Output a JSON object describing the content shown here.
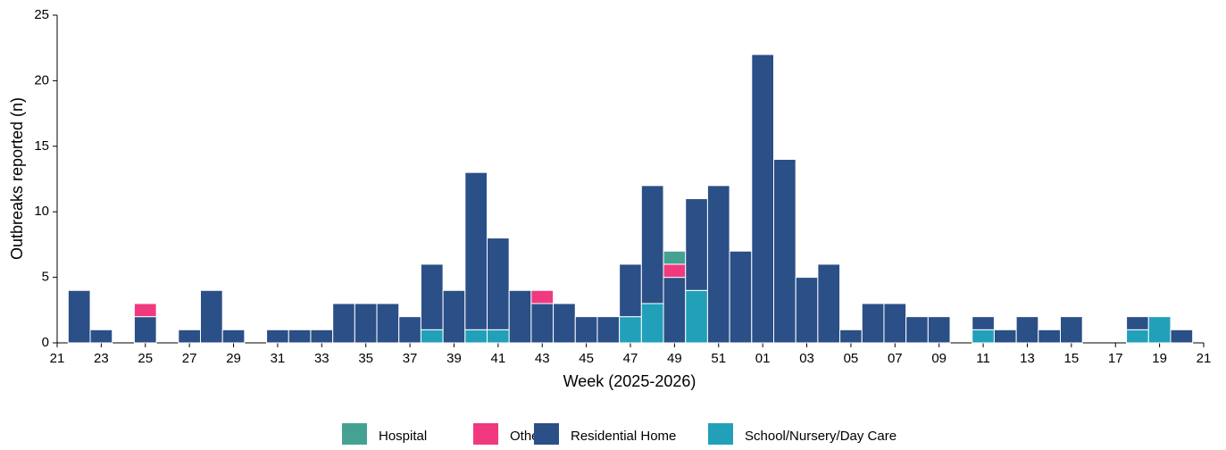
{
  "chart_data": {
    "type": "stacked_bar",
    "xlabel": "Week (2025-2026)",
    "ylabel": "Outbreaks reported (n)",
    "categories": [
      "21",
      null,
      "23",
      null,
      "25",
      null,
      "27",
      null,
      "29",
      null,
      "31",
      null,
      "33",
      null,
      "35",
      null,
      "37",
      null,
      "39",
      null,
      "41",
      null,
      "43",
      null,
      "45",
      null,
      "47",
      null,
      "49",
      null,
      "51",
      null,
      "01",
      null,
      "03",
      null,
      "05",
      null,
      "07",
      null,
      "09",
      null,
      "11",
      null,
      "13",
      null,
      "15",
      null,
      "17",
      null,
      "19",
      null,
      "21"
    ],
    "series": [
      {
        "name": "Hospital",
        "color": "#45a292",
        "values": [
          0,
          0,
          0,
          0,
          0,
          0,
          0,
          0,
          0,
          0,
          0,
          0,
          0,
          0,
          0,
          0,
          0,
          0,
          0,
          0,
          0,
          0,
          0,
          0,
          0,
          0,
          0,
          0,
          1,
          0,
          0,
          0,
          0,
          0,
          0,
          0,
          0,
          0,
          0,
          0,
          0,
          0,
          0,
          0,
          0,
          0,
          0,
          0,
          0,
          0,
          0,
          0,
          0
        ]
      },
      {
        "name": "Other",
        "color": "#f0397f",
        "values": [
          0,
          0,
          0,
          0,
          1,
          0,
          0,
          0,
          0,
          0,
          0,
          0,
          0,
          0,
          0,
          0,
          0,
          0,
          0,
          0,
          0,
          0,
          1,
          0,
          0,
          0,
          0,
          0,
          1,
          0,
          0,
          0,
          0,
          0,
          0,
          0,
          0,
          0,
          0,
          0,
          0,
          0,
          0,
          0,
          0,
          0,
          0,
          0,
          0,
          0,
          0,
          0,
          0
        ]
      },
      {
        "name": "Residential Home",
        "color": "#2b4f87",
        "values": [
          0,
          4,
          1,
          0,
          2,
          0,
          1,
          4,
          1,
          0,
          1,
          1,
          1,
          3,
          3,
          3,
          2,
          5,
          4,
          12,
          7,
          4,
          3,
          3,
          2,
          2,
          4,
          9,
          5,
          7,
          12,
          7,
          22,
          14,
          5,
          6,
          1,
          3,
          3,
          2,
          2,
          0,
          1,
          1,
          2,
          1,
          2,
          0,
          0,
          1,
          0,
          1,
          0
        ]
      },
      {
        "name": "School/Nursery/Day Care",
        "color": "#22a0b9",
        "values": [
          0,
          0,
          0,
          0,
          0,
          0,
          0,
          0,
          0,
          0,
          0,
          0,
          0,
          0,
          0,
          0,
          0,
          1,
          0,
          1,
          1,
          0,
          0,
          0,
          0,
          0,
          2,
          3,
          0,
          4,
          0,
          0,
          0,
          0,
          0,
          0,
          0,
          0,
          0,
          0,
          0,
          0,
          1,
          0,
          0,
          0,
          0,
          0,
          0,
          1,
          2,
          0,
          0
        ]
      }
    ],
    "ylim": [
      0,
      25
    ],
    "yticks": [
      0,
      5,
      10,
      15,
      20,
      25
    ]
  }
}
